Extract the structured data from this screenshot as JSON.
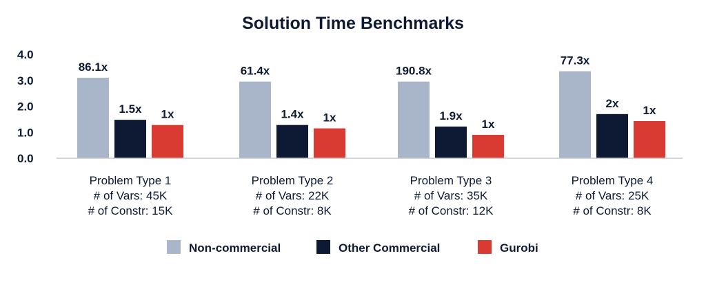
{
  "chart_data": {
    "type": "bar",
    "title": "Solution Time Benchmarks",
    "xlabel": "",
    "ylabel": "",
    "ylim": [
      0,
      4
    ],
    "yticks": [
      "4.0",
      "3.0",
      "2.0",
      "1.0",
      "0.0"
    ],
    "grid": false,
    "legend_position": "bottom",
    "categories": [
      [
        "Problem Type 1",
        "# of Vars: 45K",
        "# of Constr: 15K"
      ],
      [
        "Problem Type 2",
        "# of Vars: 22K",
        "# of Constr: 8K"
      ],
      [
        "Problem Type 3",
        "# of Vars: 35K",
        "# of Constr: 12K"
      ],
      [
        "Problem Type 4",
        "# of Vars: 25K",
        "# of Constr: 8K"
      ]
    ],
    "series": [
      {
        "name": "Non-commercial",
        "color": "#a9b5c8",
        "values": [
          3.1,
          2.95,
          2.95,
          3.35
        ],
        "labels": [
          "86.1x",
          "61.4x",
          "190.8x",
          "77.3x"
        ]
      },
      {
        "name": "Other Commercial",
        "color": "#0e1a33",
        "values": [
          1.48,
          1.28,
          1.22,
          1.7
        ],
        "labels": [
          "1.5x",
          "1.4x",
          "1.9x",
          "2x"
        ]
      },
      {
        "name": "Gurobi",
        "color": "#d93a32",
        "values": [
          1.28,
          1.15,
          0.9,
          1.43
        ],
        "labels": [
          "1x",
          "1x",
          "1x",
          "1x"
        ]
      }
    ]
  }
}
